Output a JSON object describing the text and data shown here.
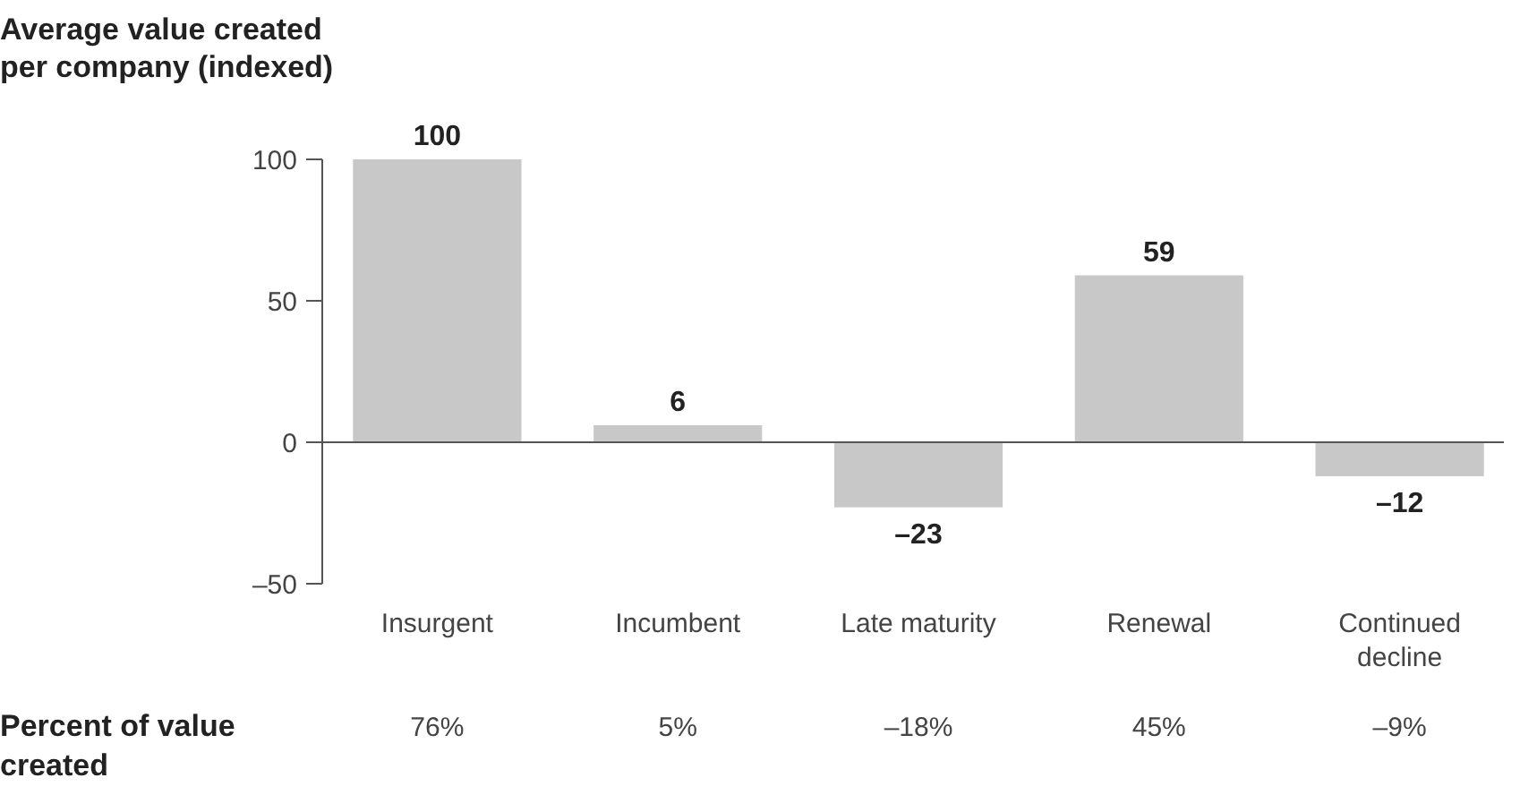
{
  "chart_data": {
    "type": "bar",
    "ylabel": "Average value created per company (indexed)",
    "categories": [
      "Insurgent",
      "Incumbent",
      "Late maturity",
      "Renewal",
      "Continued decline"
    ],
    "values": [
      100,
      6,
      -23,
      59,
      -12
    ],
    "value_labels": [
      "100",
      "6",
      "–23",
      "59",
      "–12"
    ],
    "color": "#c8c8c8",
    "ylim": [
      -50,
      100
    ],
    "yticks": [
      {
        "value": -50,
        "label": "–50"
      },
      0,
      50,
      100
    ],
    "annotations": [
      "Percent of value created",
      "76%",
      "5%",
      "–18%",
      "45%",
      "–9%"
    ]
  }
}
